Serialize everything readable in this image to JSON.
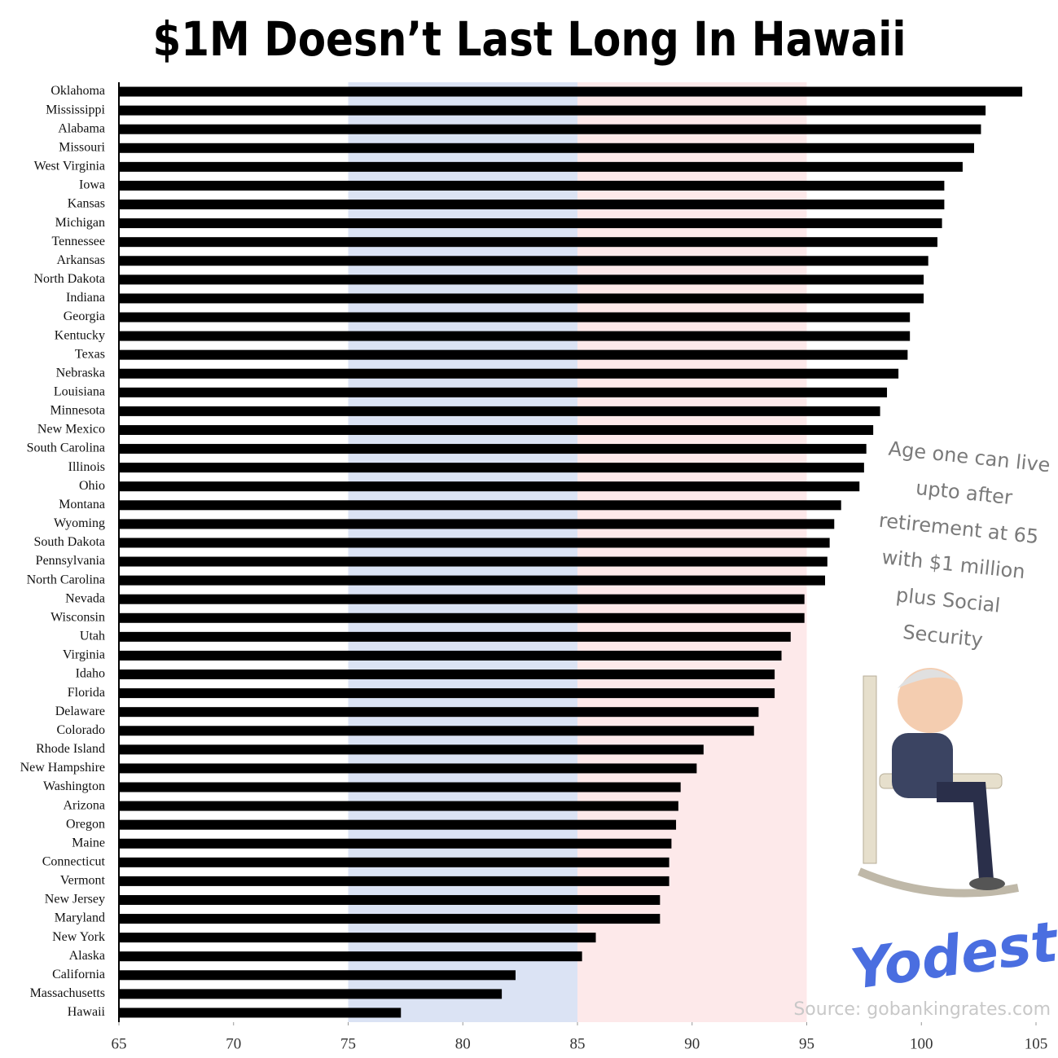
{
  "chart_data": {
    "type": "barh",
    "title": "$1M Doesn’t Last Long In Hawaii",
    "categories": [
      "Oklahoma",
      "Mississippi",
      "Alabama",
      "Missouri",
      "West Virginia",
      "Iowa",
      "Kansas",
      "Michigan",
      "Tennessee",
      "Arkansas",
      "North Dakota",
      "Indiana",
      "Georgia",
      "Kentucky",
      "Texas",
      "Nebraska",
      "Louisiana",
      "Minnesota",
      "New Mexico",
      "South Carolina",
      "Illinois",
      "Ohio",
      "Montana",
      "Wyoming",
      "South Dakota",
      "Pennsylvania",
      "North Carolina",
      "Nevada",
      "Wisconsin",
      "Utah",
      "Virginia",
      "Idaho",
      "Florida",
      "Delaware",
      "Colorado",
      "Rhode Island",
      "New Hampshire",
      "Washington",
      "Arizona",
      "Oregon",
      "Maine",
      "Connecticut",
      "Vermont",
      "New Jersey",
      "Maryland",
      "New York",
      "Alaska",
      "California",
      "Massachusetts",
      "Hawaii"
    ],
    "values": [
      104.4,
      102.8,
      102.6,
      102.3,
      101.8,
      101.0,
      101.0,
      100.9,
      100.7,
      100.3,
      100.1,
      100.1,
      99.5,
      99.5,
      99.4,
      99.0,
      98.5,
      98.2,
      97.9,
      97.6,
      97.5,
      97.3,
      96.5,
      96.2,
      96.0,
      95.9,
      95.8,
      94.9,
      94.9,
      94.3,
      93.9,
      93.6,
      93.6,
      92.9,
      92.7,
      90.5,
      90.2,
      89.5,
      89.4,
      89.3,
      89.1,
      89.0,
      89.0,
      88.6,
      88.6,
      85.8,
      85.2,
      82.3,
      81.7,
      77.3
    ],
    "color": "#000000",
    "xlim": [
      65,
      105
    ],
    "xticks": [
      65,
      70,
      75,
      80,
      85,
      90,
      95,
      100,
      105
    ],
    "bands": [
      {
        "from": 75,
        "to": 85,
        "color": "#dbe3f4"
      },
      {
        "from": 85,
        "to": 95,
        "color": "#fde9ea"
      }
    ],
    "annotation": [
      "Age one can live",
      "upto after",
      "retirement at 65",
      "with $1 million",
      "plus Social",
      "Security"
    ],
    "source": "Source: gobankingrates.com",
    "logo": "Yodest"
  }
}
